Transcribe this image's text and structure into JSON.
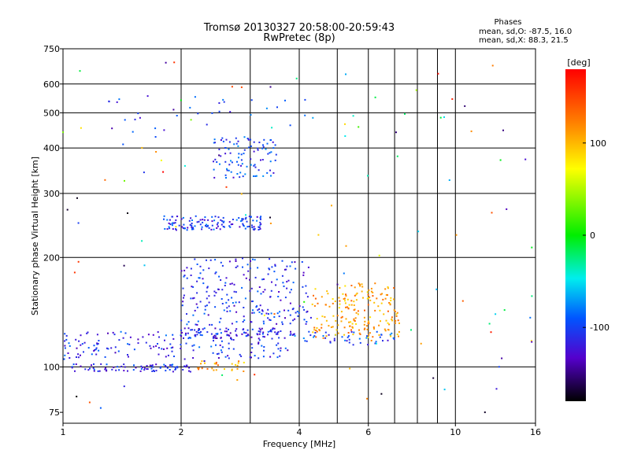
{
  "chart_data": {
    "type": "scatter",
    "title_line1": "Tromsø 20130327 20:58:00-20:59:43",
    "title_line2": "RwPretec (8p)",
    "stats": {
      "heading": "Phases",
      "line_o": "mean, sd,O: -87.5, 16.0",
      "line_x": "mean, sd,X:  88.3, 21.5"
    },
    "xlabel": "Frequency [MHz]",
    "ylabel": "Stationary phase Virtual Height [km]",
    "x_scale": "log",
    "y_scale": "log",
    "xlim": [
      1,
      16
    ],
    "ylim": [
      70,
      750
    ],
    "x_ticks": [
      1,
      2,
      4,
      6,
      10,
      16
    ],
    "x_tick_labels": [
      "1",
      "2",
      "4",
      "6",
      "10",
      "16"
    ],
    "x_gridlines": [
      1,
      2,
      3,
      4,
      5,
      6,
      7,
      8,
      9,
      10,
      16
    ],
    "y_ticks": [
      75,
      100,
      200,
      300,
      400,
      500,
      600,
      750
    ],
    "y_tick_labels": [
      "75",
      "100",
      "200",
      "300",
      "400",
      "500",
      "600",
      "750"
    ],
    "y_gridlines": [
      100,
      200,
      300,
      400,
      500,
      600
    ],
    "colorbar": {
      "label": "[deg]",
      "range": [
        -180,
        180
      ],
      "ticks": [
        100,
        0,
        -100
      ],
      "tick_labels": [
        "100",
        "0",
        "-100"
      ]
    },
    "clusters": [
      {
        "id": "e-trace-low",
        "f_range": [
          1.0,
          3.8
        ],
        "h_range": [
          105,
          125
        ],
        "phase": -110,
        "count": 170
      },
      {
        "id": "e-trace-mid",
        "f_range": [
          2.0,
          3.6
        ],
        "h_range": [
          120,
          128
        ],
        "phase": -115,
        "count": 80
      },
      {
        "id": "e-trace-ext",
        "f_range": [
          3.8,
          7.0
        ],
        "h_range": [
          115,
          125
        ],
        "phase": -100,
        "count": 50
      },
      {
        "id": "floor-100",
        "f_range": [
          1.05,
          2.15
        ],
        "h_range": [
          97,
          102
        ],
        "phase": -110,
        "count": 80
      },
      {
        "id": "floor-100-yellow",
        "f_range": [
          2.2,
          2.9
        ],
        "h_range": [
          97,
          104
        ],
        "phase": 110,
        "count": 28
      },
      {
        "id": "es-200",
        "f_range": [
          2.0,
          4.3
        ],
        "h_range": [
          130,
          200
        ],
        "phase": -110,
        "count": 230
      },
      {
        "id": "yellow-hump",
        "f_range": [
          4.3,
          7.2
        ],
        "h_range": [
          120,
          170
        ],
        "phase": 110,
        "count": 190
      },
      {
        "id": "f-250",
        "f_range": [
          1.8,
          3.2
        ],
        "h_range": [
          238,
          260
        ],
        "phase": -105,
        "count": 130
      },
      {
        "id": "f-350",
        "f_range": [
          2.4,
          3.5
        ],
        "h_range": [
          330,
          430
        ],
        "phase": -100,
        "count": 95
      },
      {
        "id": "scatter-high",
        "f_range": [
          1.3,
          4.2
        ],
        "h_range": [
          420,
          560
        ],
        "phase": -100,
        "count": 35
      },
      {
        "id": "scatter-all",
        "f_range": [
          1.0,
          16.0
        ],
        "h_range": [
          75,
          700
        ],
        "phase": 0,
        "count": 110
      }
    ]
  }
}
